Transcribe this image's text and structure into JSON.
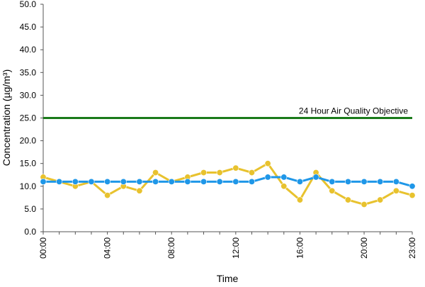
{
  "chart_data": {
    "type": "line",
    "title": "",
    "xlabel": "Time",
    "ylabel": "Concentration (µg/m³)",
    "ylim": [
      0,
      50
    ],
    "y_ticks": [
      0,
      5,
      10,
      15,
      20,
      25,
      30,
      35,
      40,
      45,
      50
    ],
    "y_tick_labels": [
      "0.0",
      "5.0",
      "10.0",
      "15.0",
      "20.0",
      "25.0",
      "30.0",
      "35.0",
      "40.0",
      "45.0",
      "50.0"
    ],
    "x": [
      0,
      1,
      2,
      3,
      4,
      5,
      6,
      7,
      8,
      9,
      10,
      11,
      12,
      13,
      14,
      15,
      16,
      17,
      18,
      19,
      20,
      21,
      22,
      23
    ],
    "x_tick_positions": [
      0,
      4,
      8,
      12,
      16,
      20,
      23
    ],
    "x_tick_labels": [
      "00:00",
      "04:00",
      "08:00",
      "12:00",
      "16:00",
      "20:00",
      "23:00"
    ],
    "grid": false,
    "legend": "none",
    "objective": {
      "label": "24 Hour Air Quality Objective",
      "value": 25,
      "color": "#1a7a1a"
    },
    "series": [
      {
        "color": "#e8c22e",
        "values": [
          12,
          11,
          10,
          11,
          8,
          10,
          9,
          13,
          11,
          12,
          13,
          13,
          14,
          13,
          15,
          10,
          7,
          13,
          9,
          7,
          6,
          7,
          9,
          8
        ]
      },
      {
        "color": "#1f97e8",
        "values": [
          11,
          11,
          11,
          11,
          11,
          11,
          11,
          11,
          11,
          11,
          11,
          11,
          11,
          11,
          12,
          12,
          11,
          12,
          11,
          11,
          11,
          11,
          11,
          10
        ]
      }
    ],
    "axis_color": "#555555"
  }
}
